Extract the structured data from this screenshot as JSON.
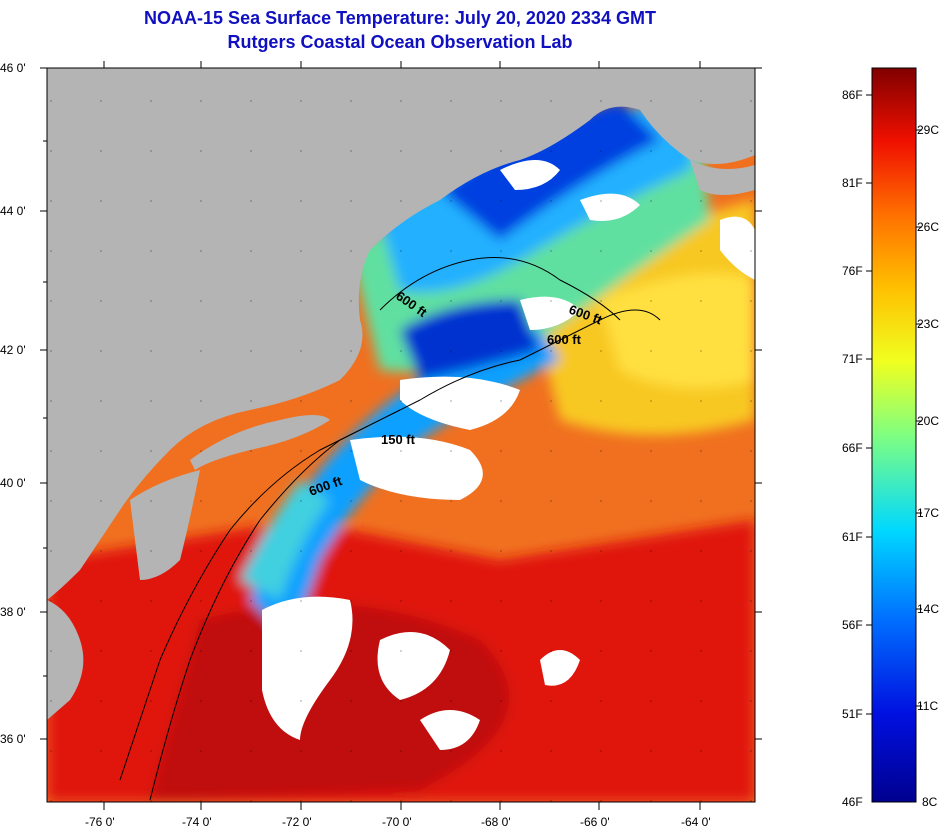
{
  "header": {
    "title": "NOAA-15 Sea Surface Temperature:  July 20, 2020 2334 GMT",
    "subtitle": "Rutgers Coastal Ocean Observation Lab"
  },
  "axes": {
    "lat_labels": [
      "46 0'",
      "44 0'",
      "42 0'",
      "40 0'",
      "38 0'",
      "36 0'"
    ],
    "lon_labels": [
      "-76 0'",
      "-74 0'",
      "-72 0'",
      "-70 0'",
      "-68 0'",
      "-66 0'",
      "-64 0'"
    ]
  },
  "contours": {
    "labels": [
      "600 ft",
      "600 ft",
      "600 ft",
      "150 ft",
      "600 ft"
    ]
  },
  "colorbar": {
    "fahrenheit": [
      "86F",
      "81F",
      "76F",
      "71F",
      "66F",
      "61F",
      "56F",
      "51F",
      "46F"
    ],
    "celsius": [
      "29C",
      "26C",
      "23C",
      "20C",
      "17C",
      "14C",
      "11C",
      "8C"
    ]
  },
  "colors": {
    "land": "#b4b4b4",
    "cloud": "#ffffff",
    "title": "#1010c0",
    "warm": "#e02010",
    "cold": "#0020c0"
  }
}
